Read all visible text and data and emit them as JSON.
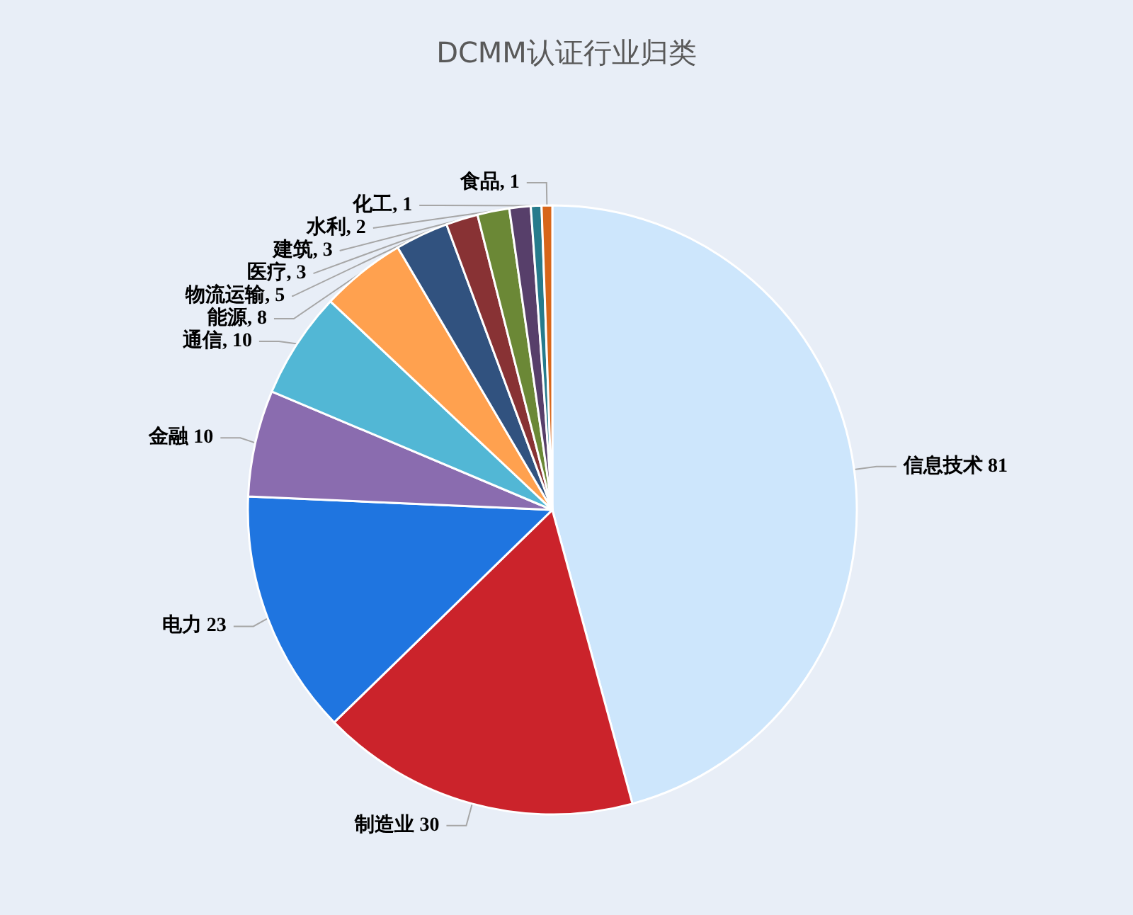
{
  "chart_data": {
    "type": "pie",
    "title": "DCMM认证行业归类",
    "categories": [
      "信息技术",
      "制造业",
      "电力",
      "金融",
      "通信",
      "能源",
      "物流运输",
      "医疗",
      "建筑",
      "水利",
      "化工",
      "食品"
    ],
    "values": [
      81,
      30,
      23,
      10,
      10,
      8,
      5,
      3,
      3,
      2,
      1,
      1
    ],
    "colors": [
      "#cde6fc",
      "#cb232b",
      "#1f75e0",
      "#8a6caf",
      "#52b7d5",
      "#ffa14f",
      "#31527f",
      "#883234",
      "#6b8836",
      "#573f6a",
      "#267b8c",
      "#d7661a"
    ],
    "value_labels": [
      " 81",
      " 30",
      " 23",
      " 10",
      ", 10",
      ", 8",
      ", 5",
      ", 3",
      ", 3",
      ", 2",
      ", 1",
      ", 1"
    ],
    "legend": false
  }
}
